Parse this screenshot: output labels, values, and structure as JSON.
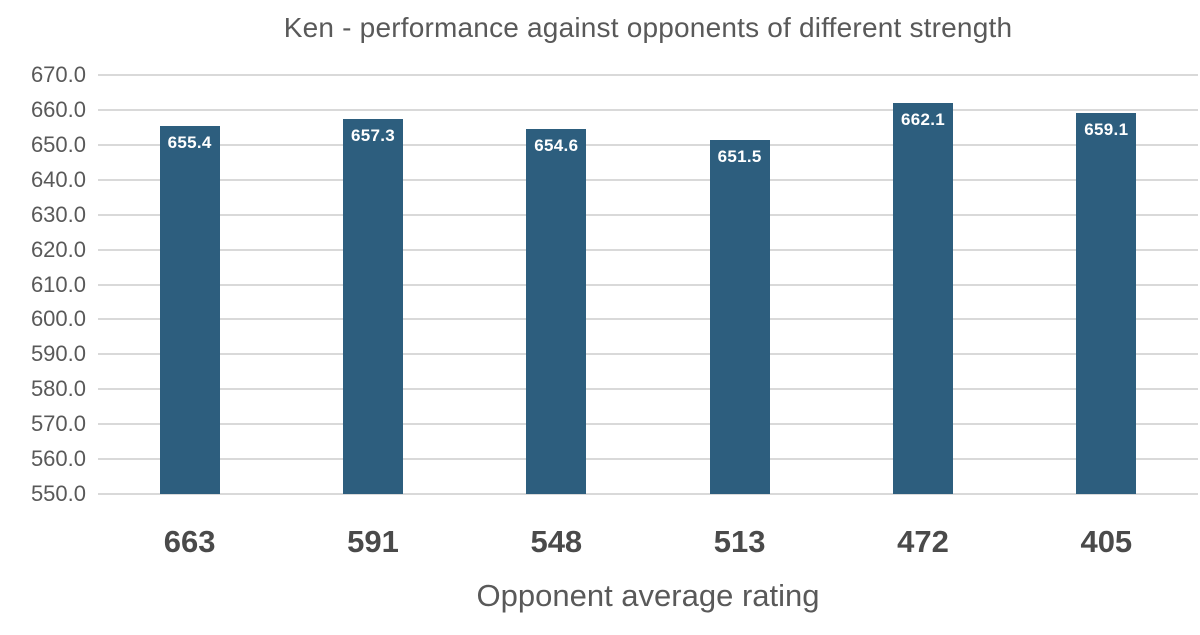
{
  "chart_data": {
    "type": "bar",
    "title": "Ken - performance against opponents of different strength",
    "xlabel": "Opponent average rating",
    "ylabel": "",
    "categories": [
      "663",
      "591",
      "548",
      "513",
      "472",
      "405"
    ],
    "values": [
      655.4,
      657.3,
      654.6,
      651.5,
      662.1,
      659.1
    ],
    "value_labels": [
      "655.4",
      "657.3",
      "654.6",
      "651.5",
      "662.1",
      "659.1"
    ],
    "ylim": [
      550,
      670
    ],
    "ytick_step": 10,
    "ytick_labels": [
      "670.0",
      "660.0",
      "650.0",
      "640.0",
      "630.0",
      "620.0",
      "610.0",
      "600.0",
      "590.0",
      "580.0",
      "570.0",
      "560.0",
      "550.0"
    ],
    "grid": true,
    "legend": false,
    "colors": {
      "bar": "#2d5e7e",
      "gridline": "#d9d9d9",
      "title_text": "#595959",
      "axis_tick_text": "#595959",
      "category_text": "#4a4a4a",
      "bar_label_text": "#ffffff",
      "background": "#ffffff"
    }
  }
}
